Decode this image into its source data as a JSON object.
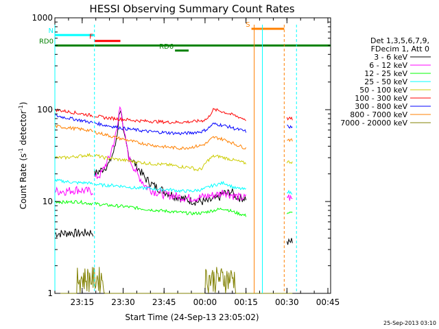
{
  "chart_data": {
    "type": "line",
    "title": "HESSI Observing Summary Count Rates",
    "xlabel": "Start Time (24-Sep-13 23:05:02)",
    "ylabel_main": "Count Rate (s",
    "ylabel_sup1": "-1",
    "ylabel_mid": " detector",
    "ylabel_sup2": "-1",
    "ylabel_end": ")",
    "yscale": "log",
    "ylim": [
      1,
      1000
    ],
    "xlim_minutes_after_start": [
      0,
      101
    ],
    "x_ticks": [
      {
        "label": "23:15",
        "t": 10
      },
      {
        "label": "23:30",
        "t": 25
      },
      {
        "label": "23:45",
        "t": 40
      },
      {
        "label": "00:00",
        "t": 55
      },
      {
        "label": "00:15",
        "t": 70
      },
      {
        "label": "00:30",
        "t": 85
      },
      {
        "label": "00:45",
        "t": 100
      }
    ],
    "y_ticks": [
      {
        "label": "1",
        "v": 1
      },
      {
        "label": "10",
        "v": 10
      },
      {
        "label": "100",
        "v": 100
      },
      {
        "label": "1000",
        "v": 1000
      }
    ],
    "legend_header": [
      "Det 1,3,5,6,7,9,",
      "FDecim 1, Att 0"
    ],
    "legend_position": "right",
    "series": [
      {
        "name": "3 - 6 keV",
        "color": "#000000",
        "segments": [
          {
            "t": [
              0,
              3,
              6,
              9,
              12,
              14
            ],
            "y": [
              4.5,
              4.5,
              4.6,
              4.5,
              4.6,
              4.6
            ]
          },
          {
            "t": [
              14.5,
              17,
              20,
              22,
              23,
              24,
              25,
              27,
              30,
              33,
              36,
              40,
              44,
              48,
              52,
              56,
              60,
              62,
              63,
              64,
              65,
              66,
              68,
              70
            ],
            "y": [
              20,
              22,
              26,
              38,
              60,
              110,
              55,
              32,
              24,
              18,
              15,
              13,
              11.5,
              10.5,
              10,
              10,
              11,
              12.5,
              12,
              13,
              12.5,
              11.5,
              11,
              11
            ]
          },
          {
            "t": [
              85,
              86,
              87
            ],
            "y": [
              3.5,
              3.6,
              3.8
            ]
          }
        ]
      },
      {
        "name": "6 - 12 keV",
        "color": "#ff00ff",
        "segments": [
          {
            "t": [
              0,
              4,
              8,
              12,
              14
            ],
            "y": [
              13,
              13,
              13.5,
              13,
              13
            ]
          },
          {
            "t": [
              14.5,
              17,
              20,
              22,
              23,
              24,
              25,
              27,
              30,
              33,
              36,
              40,
              44,
              48,
              52,
              56,
              60,
              62,
              64,
              66,
              68,
              70
            ],
            "y": [
              18,
              20,
              30,
              48,
              65,
              120,
              60,
              30,
              20,
              15,
              13,
              12,
              11.5,
              11,
              11,
              11.5,
              12,
              13,
              12,
              11.5,
              11,
              11
            ]
          },
          {
            "t": [
              85,
              86,
              87
            ],
            "y": [
              11.5,
              11,
              10.5
            ]
          }
        ]
      },
      {
        "name": "12 - 25 keV",
        "color": "#00ff00",
        "segments": [
          {
            "t": [
              0,
              4,
              8,
              12,
              14
            ],
            "y": [
              10,
              9.8,
              10,
              9.6,
              9.5
            ]
          },
          {
            "t": [
              14.5,
              18,
              22,
              26,
              30,
              34,
              38,
              42,
              46,
              50,
              54,
              58,
              62,
              66,
              70
            ],
            "y": [
              9.5,
              9.2,
              9,
              8.8,
              8.5,
              8.2,
              8,
              7.8,
              7.6,
              7.4,
              7.5,
              8,
              8.4,
              7.6,
              7
            ]
          },
          {
            "t": [
              85,
              86,
              87
            ],
            "y": [
              7.5,
              7.5,
              7.5
            ]
          }
        ]
      },
      {
        "name": "25 - 50 keV",
        "color": "#00ffff",
        "segments": [
          {
            "t": [
              0,
              4,
              8,
              12,
              14
            ],
            "y": [
              17,
              16.5,
              16,
              16,
              15.5
            ]
          },
          {
            "t": [
              14.5,
              18,
              22,
              26,
              30,
              34,
              38,
              42,
              46,
              50,
              54,
              58,
              62,
              66,
              70
            ],
            "y": [
              15.5,
              15,
              15,
              14.5,
              14,
              14,
              13.5,
              13.5,
              13,
              13,
              13.5,
              15,
              16,
              14,
              13.5
            ]
          },
          {
            "t": [
              85,
              86,
              87
            ],
            "y": [
              13,
              12.5,
              12.5
            ]
          }
        ]
      },
      {
        "name": "50 - 100 keV",
        "color": "#cccc00",
        "segments": [
          {
            "t": [
              0,
              4,
              8,
              12,
              14
            ],
            "y": [
              30,
              30,
              31,
              32,
              32
            ]
          },
          {
            "t": [
              14.5,
              18,
              22,
              26,
              30,
              34,
              38,
              42,
              46,
              50,
              52,
              54,
              56,
              58,
              60,
              62,
              64,
              66,
              68,
              70
            ],
            "y": [
              32,
              30,
              29,
              28,
              27,
              26,
              25.5,
              25,
              24,
              23.5,
              22,
              23,
              28,
              31,
              31,
              30,
              29,
              28,
              27,
              26
            ]
          },
          {
            "t": [
              85,
              86,
              87
            ],
            "y": [
              27,
              27,
              27
            ]
          }
        ]
      },
      {
        "name": "100 - 300 keV",
        "color": "#ff0000",
        "segments": [
          {
            "t": [
              0,
              4,
              8,
              12,
              14
            ],
            "y": [
              100,
              96,
              92,
              88,
              86
            ]
          },
          {
            "t": [
              14.5,
              18,
              22,
              26,
              30,
              34,
              38,
              42,
              46,
              50,
              54,
              56,
              58,
              60,
              62,
              64,
              66,
              68,
              70
            ],
            "y": [
              86,
              82,
              80,
              78,
              76,
              75,
              74,
              73,
              73,
              74,
              76,
              80,
              100,
              98,
              94,
              90,
              86,
              82,
              78
            ]
          },
          {
            "t": [
              85,
              86,
              87
            ],
            "y": [
              80,
              80,
              79
            ]
          }
        ]
      },
      {
        "name": "300 - 800 keV",
        "color": "#0000ff",
        "segments": [
          {
            "t": [
              0,
              4,
              8,
              12,
              14
            ],
            "y": [
              86,
              82,
              78,
              74,
              72
            ]
          },
          {
            "t": [
              14.5,
              18,
              22,
              26,
              30,
              34,
              38,
              42,
              46,
              50,
              54,
              56,
              58,
              60,
              62,
              64,
              66,
              68,
              70
            ],
            "y": [
              72,
              68,
              65,
              62,
              60,
              58,
              57,
              56,
              55,
              56,
              58,
              62,
              70,
              69,
              67,
              65,
              62,
              60,
              58
            ]
          },
          {
            "t": [
              85,
              86,
              87
            ],
            "y": [
              66,
              65,
              64
            ]
          }
        ]
      },
      {
        "name": "800 - 7000 keV",
        "color": "#ff8000",
        "segments": [
          {
            "t": [
              0,
              4,
              8,
              12,
              14
            ],
            "y": [
              66,
              64,
              62,
              60,
              58
            ]
          },
          {
            "t": [
              14.5,
              18,
              22,
              26,
              30,
              34,
              38,
              42,
              46,
              50,
              54,
              56,
              58,
              60,
              62,
              64,
              66,
              68,
              70
            ],
            "y": [
              57,
              54,
              50,
              47,
              44,
              42,
              40,
              39,
              38,
              39,
              41,
              44,
              50,
              49,
              47,
              45,
              42,
              40,
              38
            ]
          },
          {
            "t": [
              85,
              86,
              87
            ],
            "y": [
              48,
              47,
              46
            ]
          }
        ]
      },
      {
        "name": "7000 - 20000 keV",
        "color": "#808000",
        "segments": [
          {
            "t": [
              0,
              8,
              8.01,
              18,
              18.01,
              55,
              55.01,
              66,
              66.01,
              87
            ],
            "y": [
              1,
              1,
              1.9,
              1.9,
              1,
              1,
              1.9,
              1.9,
              1,
              1
            ]
          }
        ]
      }
    ],
    "flags": [
      {
        "letter": "N",
        "color": "#00ffff",
        "t": [
          0,
          14.5
        ],
        "v": 650
      },
      {
        "letter": "F",
        "color": "#ff0000",
        "t": [
          14.5,
          24
        ],
        "v": 560
      },
      {
        "letter": "RD0",
        "color": "#008000",
        "t": [
          0,
          101
        ],
        "v": 500
      },
      {
        "letter": "RD6",
        "color": "#008000",
        "t": [
          44,
          49
        ],
        "v": 440
      },
      {
        "letter": "S",
        "color": "#ff8000",
        "t": [
          72,
          84
        ],
        "v": 760
      }
    ]
  },
  "timestamp": "25-Sep-2013 03:10"
}
